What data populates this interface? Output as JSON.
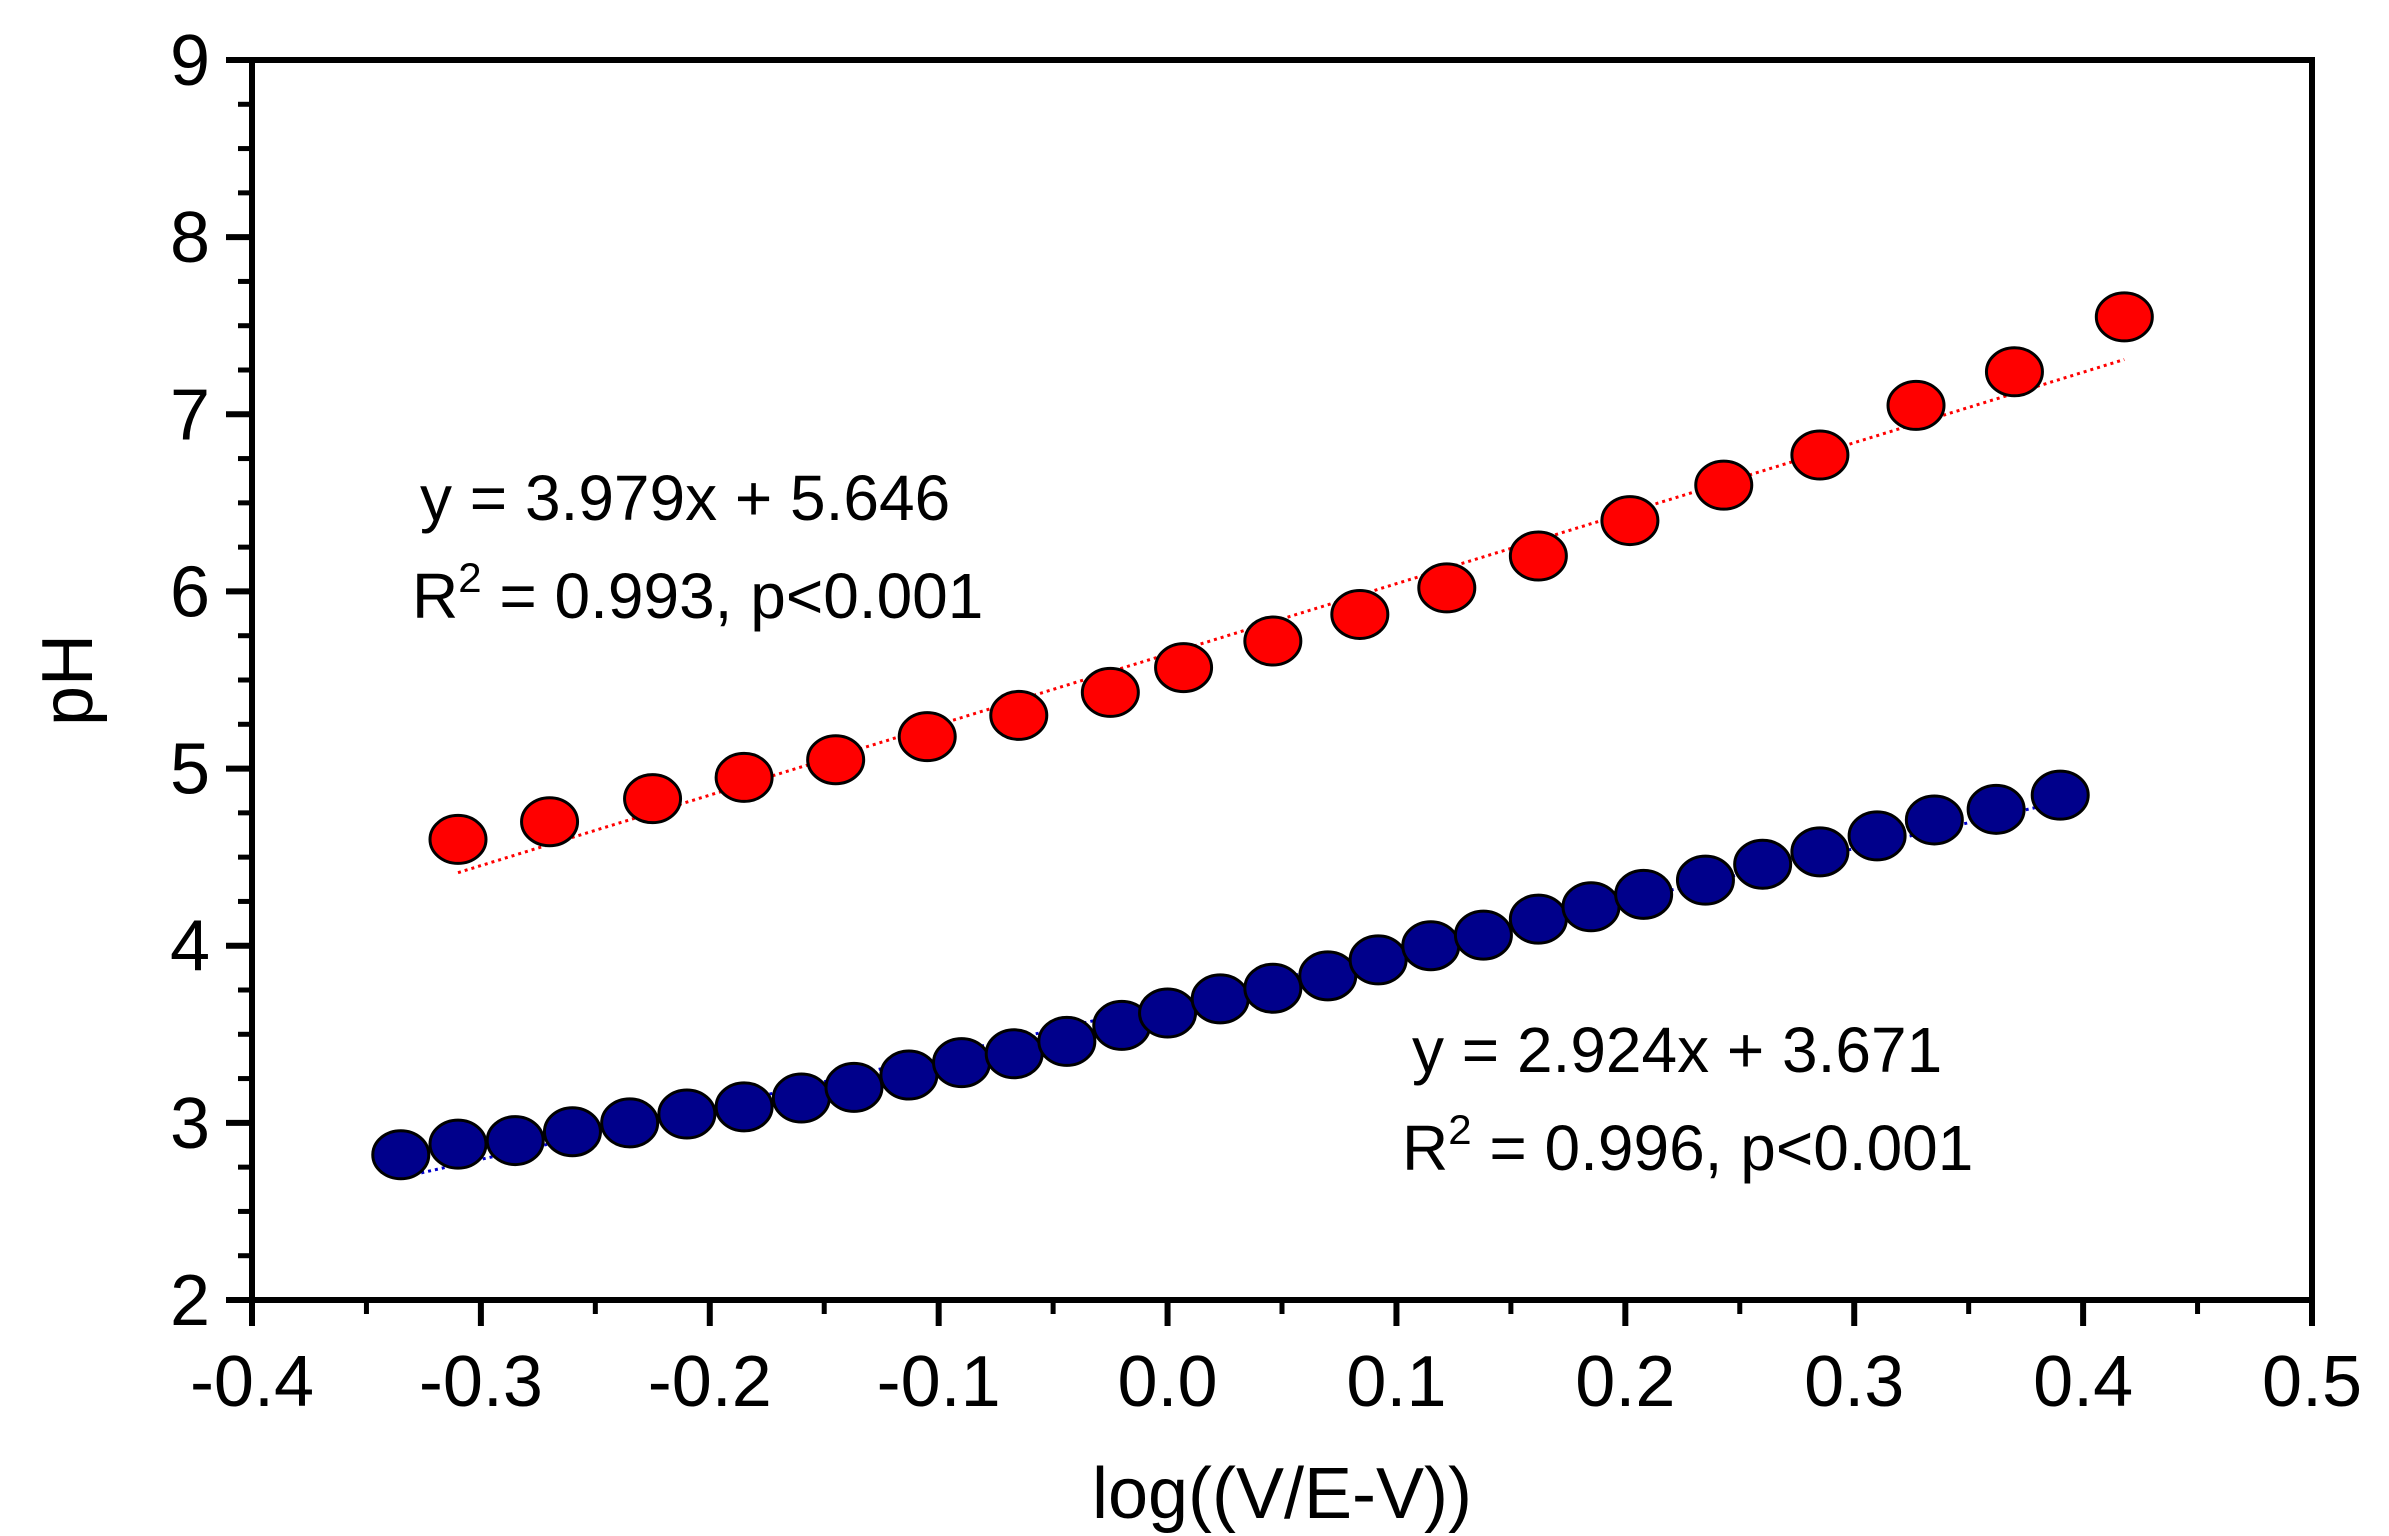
{
  "chart_data": {
    "type": "scatter",
    "title": "",
    "xlabel": "log((V/E-V))",
    "ylabel": "pH",
    "xlim": [
      -0.4,
      0.5
    ],
    "ylim": [
      2,
      9
    ],
    "xticks": [
      -0.4,
      -0.3,
      -0.2,
      -0.1,
      0.0,
      0.1,
      0.2,
      0.3,
      0.4,
      0.5
    ],
    "xtick_labels": [
      "-0.4",
      "-0.3",
      "-0.2",
      "-0.1",
      "0.0",
      "0.1",
      "0.2",
      "0.3",
      "0.4",
      "0.5"
    ],
    "yticks": [
      2,
      3,
      4,
      5,
      6,
      7,
      8,
      9
    ],
    "ytick_labels": [
      "2",
      "3",
      "4",
      "5",
      "6",
      "7",
      "8",
      "9"
    ],
    "grid": false,
    "series": [
      {
        "name": "red",
        "color": "#ff0000",
        "fit_color": "#ff0000",
        "x": [
          -0.31,
          -0.27,
          -0.225,
          -0.185,
          -0.145,
          -0.105,
          -0.065,
          -0.025,
          0.007,
          0.046,
          0.084,
          0.122,
          0.162,
          0.202,
          0.243,
          0.285,
          0.327,
          0.37,
          0.418
        ],
        "y": [
          4.6,
          4.7,
          4.83,
          4.95,
          5.05,
          5.18,
          5.3,
          5.43,
          5.57,
          5.72,
          5.87,
          6.02,
          6.2,
          6.4,
          6.6,
          6.77,
          7.05,
          7.24,
          7.55
        ],
        "fit": {
          "slope": 3.979,
          "intercept": 5.646,
          "x_range": [
            -0.31,
            0.418
          ]
        },
        "equation": "y = 3.979x + 5.646",
        "r2_prefix": "R",
        "r2_sup": "2",
        "r2_rest": " = 0.993, p<0.001"
      },
      {
        "name": "blue",
        "color": "#00008b",
        "fit_color": "#0000cd",
        "x": [
          -0.335,
          -0.31,
          -0.285,
          -0.26,
          -0.235,
          -0.21,
          -0.185,
          -0.16,
          -0.137,
          -0.113,
          -0.09,
          -0.067,
          -0.044,
          -0.02,
          0.0,
          0.023,
          0.046,
          0.07,
          0.092,
          0.115,
          0.138,
          0.162,
          0.185,
          0.208,
          0.235,
          0.26,
          0.285,
          0.31,
          0.335,
          0.362,
          0.39
        ],
        "y": [
          2.82,
          2.88,
          2.9,
          2.95,
          3.0,
          3.05,
          3.09,
          3.14,
          3.2,
          3.27,
          3.34,
          3.39,
          3.46,
          3.55,
          3.62,
          3.7,
          3.76,
          3.83,
          3.92,
          4.0,
          4.06,
          4.15,
          4.22,
          4.29,
          4.37,
          4.46,
          4.53,
          4.62,
          4.71,
          4.77,
          4.85
        ],
        "fit": {
          "slope": 2.924,
          "intercept": 3.671,
          "x_range": [
            -0.335,
            0.39
          ]
        },
        "equation": "y = 2.924x + 3.671",
        "r2_prefix": "R",
        "r2_sup": "2",
        "r2_rest": " = 0.996, p<0.001"
      }
    ]
  }
}
